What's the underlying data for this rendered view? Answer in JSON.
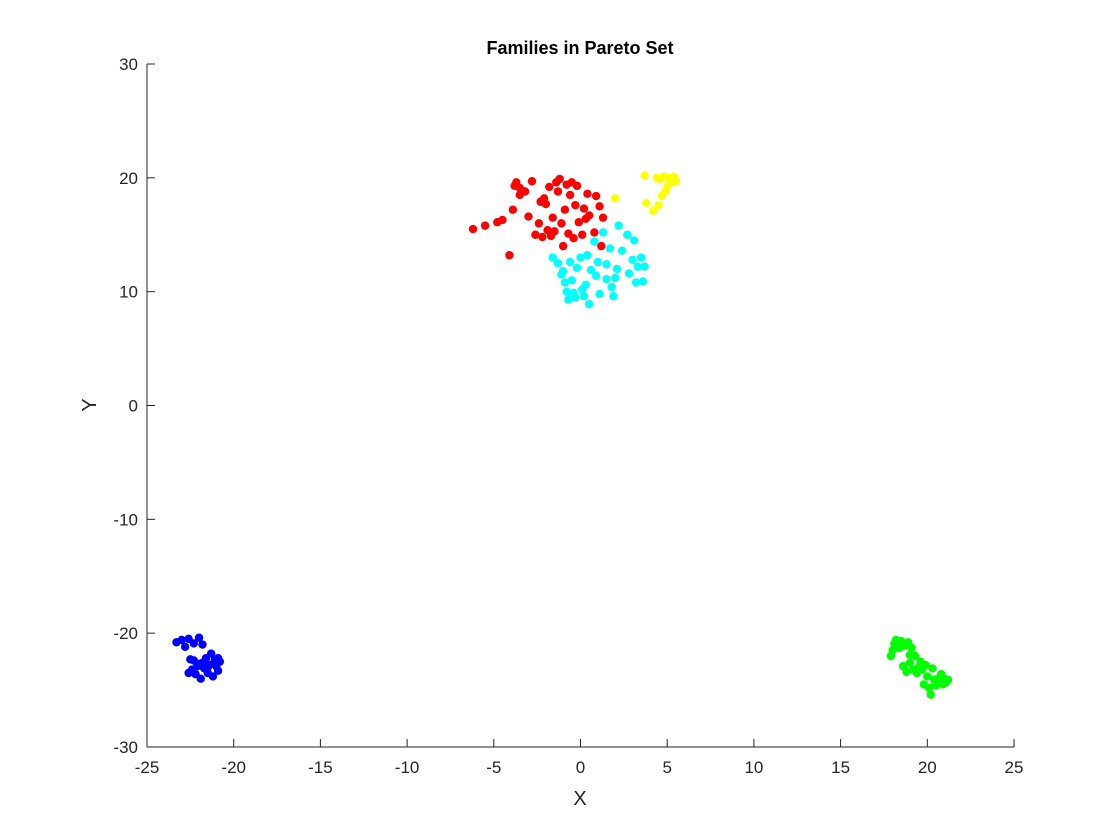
{
  "chart_data": {
    "type": "scatter",
    "title": "Families in Pareto Set",
    "xlabel": "X",
    "ylabel": "Y",
    "xlim": [
      -25,
      25
    ],
    "ylim": [
      -30,
      30
    ],
    "xticks": [
      "-25",
      "-20",
      "-15",
      "-10",
      "-5",
      "0",
      "5",
      "10",
      "15",
      "20",
      "25"
    ],
    "yticks": [
      "-30",
      "-20",
      "-10",
      "0",
      "10",
      "20",
      "30"
    ],
    "grid": false,
    "series": [
      {
        "color": "#ff0000",
        "points": [
          [
            -6.2,
            15.5
          ],
          [
            -5.5,
            15.8
          ],
          [
            -4.8,
            16.1
          ],
          [
            -4.5,
            16.3
          ],
          [
            -4.1,
            13.2
          ],
          [
            -3.9,
            17.2
          ],
          [
            -3.7,
            19.6
          ],
          [
            -3.5,
            18.5
          ],
          [
            -3.5,
            19.1
          ],
          [
            -3.2,
            18.8
          ],
          [
            -3.0,
            16.6
          ],
          [
            -2.8,
            19.7
          ],
          [
            -2.6,
            15.0
          ],
          [
            -2.4,
            16.0
          ],
          [
            -2.2,
            14.8
          ],
          [
            -2.1,
            18.2
          ],
          [
            -2.0,
            17.7
          ],
          [
            -1.9,
            15.4
          ],
          [
            -1.8,
            19.2
          ],
          [
            -1.7,
            14.9
          ],
          [
            -1.6,
            16.5
          ],
          [
            -1.5,
            15.3
          ],
          [
            -1.4,
            19.6
          ],
          [
            -1.3,
            18.8
          ],
          [
            -1.2,
            19.9
          ],
          [
            -1.0,
            14.0
          ],
          [
            -0.9,
            17.2
          ],
          [
            -0.8,
            19.4
          ],
          [
            -0.7,
            15.1
          ],
          [
            -0.6,
            18.5
          ],
          [
            -0.5,
            19.6
          ],
          [
            -0.4,
            14.7
          ],
          [
            -0.3,
            17.6
          ],
          [
            -0.2,
            19.3
          ],
          [
            -0.1,
            16.1
          ],
          [
            0.1,
            15.0
          ],
          [
            0.2,
            17.3
          ],
          [
            0.3,
            16.4
          ],
          [
            0.4,
            18.6
          ],
          [
            0.5,
            16.7
          ],
          [
            0.8,
            15.2
          ],
          [
            0.9,
            18.4
          ],
          [
            1.1,
            17.5
          ],
          [
            1.3,
            16.5
          ],
          [
            1.2,
            14.0
          ],
          [
            -3.8,
            19.3
          ],
          [
            -2.3,
            17.9
          ],
          [
            -1.1,
            16.0
          ]
        ]
      },
      {
        "color": "#ffff00",
        "points": [
          [
            2.0,
            18.2
          ],
          [
            3.7,
            20.2
          ],
          [
            3.8,
            17.8
          ],
          [
            4.2,
            17.1
          ],
          [
            4.4,
            20.0
          ],
          [
            4.5,
            17.6
          ],
          [
            4.7,
            18.4
          ],
          [
            4.8,
            20.1
          ],
          [
            4.9,
            18.8
          ],
          [
            5.0,
            19.2
          ],
          [
            5.1,
            20.0
          ],
          [
            5.2,
            19.6
          ],
          [
            5.3,
            19.8
          ],
          [
            5.4,
            20.1
          ],
          [
            5.5,
            19.7
          ],
          [
            4.6,
            19.9
          ]
        ]
      },
      {
        "color": "#00ffff",
        "points": [
          [
            -1.6,
            13.0
          ],
          [
            -1.3,
            12.5
          ],
          [
            -1.1,
            11.5
          ],
          [
            -1.0,
            11.8
          ],
          [
            -0.9,
            10.8
          ],
          [
            -0.7,
            9.3
          ],
          [
            -0.6,
            12.6
          ],
          [
            -0.5,
            11.0
          ],
          [
            -0.4,
            9.9
          ],
          [
            -0.3,
            9.5
          ],
          [
            -0.2,
            12.1
          ],
          [
            0.0,
            13.0
          ],
          [
            0.1,
            10.2
          ],
          [
            0.2,
            9.6
          ],
          [
            0.3,
            10.6
          ],
          [
            0.4,
            13.2
          ],
          [
            0.5,
            8.9
          ],
          [
            0.6,
            11.9
          ],
          [
            0.8,
            14.4
          ],
          [
            1.0,
            12.6
          ],
          [
            1.1,
            9.8
          ],
          [
            1.3,
            15.2
          ],
          [
            1.5,
            11.1
          ],
          [
            1.5,
            12.4
          ],
          [
            1.7,
            13.8
          ],
          [
            1.8,
            10.4
          ],
          [
            1.9,
            9.6
          ],
          [
            2.0,
            11.2
          ],
          [
            2.1,
            12.0
          ],
          [
            2.2,
            15.8
          ],
          [
            2.4,
            13.6
          ],
          [
            2.7,
            15.0
          ],
          [
            2.8,
            11.6
          ],
          [
            3.0,
            12.8
          ],
          [
            3.1,
            14.5
          ],
          [
            3.2,
            10.8
          ],
          [
            3.3,
            12.2
          ],
          [
            3.5,
            13.0
          ],
          [
            3.6,
            10.9
          ],
          [
            3.7,
            12.2
          ],
          [
            -0.8,
            10.0
          ],
          [
            0.9,
            11.4
          ]
        ]
      },
      {
        "color": "#0000ff",
        "points": [
          [
            -23.3,
            -20.8
          ],
          [
            -23.0,
            -20.6
          ],
          [
            -22.8,
            -21.2
          ],
          [
            -22.6,
            -20.5
          ],
          [
            -22.5,
            -22.3
          ],
          [
            -22.4,
            -23.2
          ],
          [
            -22.3,
            -20.9
          ],
          [
            -22.2,
            -23.6
          ],
          [
            -22.1,
            -22.9
          ],
          [
            -22.0,
            -20.4
          ],
          [
            -21.9,
            -24.0
          ],
          [
            -21.8,
            -22.6
          ],
          [
            -21.8,
            -21.0
          ],
          [
            -21.7,
            -23.1
          ],
          [
            -21.6,
            -22.2
          ],
          [
            -21.5,
            -23.5
          ],
          [
            -21.4,
            -22.8
          ],
          [
            -21.3,
            -21.8
          ],
          [
            -21.2,
            -23.8
          ],
          [
            -21.1,
            -22.4
          ],
          [
            -21.0,
            -22.9
          ],
          [
            -20.9,
            -23.3
          ],
          [
            -20.8,
            -22.5
          ],
          [
            -22.6,
            -23.5
          ],
          [
            -22.0,
            -22.7
          ],
          [
            -21.5,
            -23.0
          ],
          [
            -22.3,
            -22.4
          ],
          [
            -20.9,
            -22.2
          ]
        ]
      },
      {
        "color": "#00ff00",
        "points": [
          [
            17.9,
            -22.0
          ],
          [
            18.0,
            -21.5
          ],
          [
            18.1,
            -20.9
          ],
          [
            18.2,
            -20.6
          ],
          [
            18.4,
            -21.3
          ],
          [
            18.5,
            -20.7
          ],
          [
            18.6,
            -22.9
          ],
          [
            18.7,
            -21.1
          ],
          [
            18.8,
            -23.4
          ],
          [
            18.9,
            -20.8
          ],
          [
            19.0,
            -22.6
          ],
          [
            19.1,
            -21.3
          ],
          [
            19.2,
            -23.2
          ],
          [
            19.3,
            -22.0
          ],
          [
            19.4,
            -23.5
          ],
          [
            19.5,
            -23.0
          ],
          [
            19.6,
            -22.5
          ],
          [
            19.7,
            -23.2
          ],
          [
            19.8,
            -24.5
          ],
          [
            19.9,
            -22.8
          ],
          [
            20.0,
            -23.8
          ],
          [
            20.1,
            -24.8
          ],
          [
            20.2,
            -25.4
          ],
          [
            20.3,
            -23.1
          ],
          [
            20.4,
            -24.1
          ],
          [
            20.5,
            -24.6
          ],
          [
            20.6,
            -24.0
          ],
          [
            20.8,
            -23.6
          ],
          [
            20.9,
            -24.5
          ],
          [
            21.0,
            -24.0
          ],
          [
            21.1,
            -24.3
          ],
          [
            21.2,
            -24.1
          ],
          [
            18.3,
            -21.0
          ],
          [
            19.0,
            -21.9
          ]
        ]
      }
    ]
  }
}
